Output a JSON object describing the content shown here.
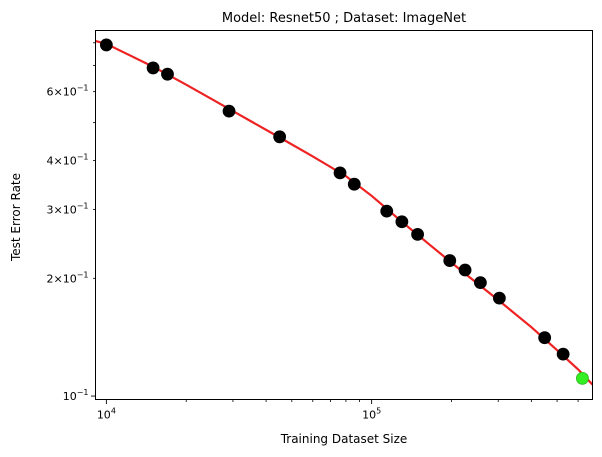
{
  "chart_data": {
    "type": "scatter",
    "title": "Model: Resnet50 ; Dataset: ImageNet",
    "xlabel": "Training Dataset Size",
    "ylabel": "Test Error Rate",
    "xscale": "log",
    "yscale": "log",
    "xlim": [
      9100,
      680000
    ],
    "ylim": [
      0.098,
      0.86
    ],
    "grid": false,
    "x_major_ticks": [
      {
        "value": 10000,
        "base": "10",
        "exp": "4"
      },
      {
        "value": 100000,
        "base": "10",
        "exp": "5"
      }
    ],
    "y_major_ticks": [
      {
        "value": 0.1,
        "base": "10",
        "exp": "−1",
        "coef": ""
      }
    ],
    "y_minor_labeled_ticks": [
      {
        "value": 0.2,
        "coef": "2",
        "base": "10",
        "exp": "−1"
      },
      {
        "value": 0.3,
        "coef": "3",
        "base": "10",
        "exp": "−1"
      },
      {
        "value": 0.4,
        "coef": "4",
        "base": "10",
        "exp": "−1"
      },
      {
        "value": 0.6,
        "coef": "6",
        "base": "10",
        "exp": "−1"
      }
    ],
    "series": [
      {
        "kind": "points",
        "color": "#000000",
        "points": [
          [
            10000,
            0.79
          ],
          [
            15000,
            0.69
          ],
          [
            17000,
            0.665
          ],
          [
            29000,
            0.535
          ],
          [
            45000,
            0.46
          ],
          [
            76000,
            0.372
          ],
          [
            86000,
            0.348
          ],
          [
            114000,
            0.297
          ],
          [
            130000,
            0.279
          ],
          [
            149000,
            0.259
          ],
          [
            197000,
            0.222
          ],
          [
            225000,
            0.21
          ],
          [
            257000,
            0.195
          ],
          [
            303000,
            0.178
          ],
          [
            449000,
            0.141
          ],
          [
            527000,
            0.128
          ]
        ]
      },
      {
        "kind": "points",
        "color": "#33ee22",
        "points": [
          [
            623000,
            0.111
          ]
        ]
      },
      {
        "kind": "fit-line",
        "color": "#ee2222",
        "points": [
          [
            9000,
            0.81
          ],
          [
            10000,
            0.795
          ],
          [
            15000,
            0.695
          ],
          [
            20000,
            0.625
          ],
          [
            30000,
            0.535
          ],
          [
            45000,
            0.458
          ],
          [
            60000,
            0.41
          ],
          [
            80000,
            0.365
          ],
          [
            100000,
            0.325
          ],
          [
            130000,
            0.279
          ],
          [
            170000,
            0.24
          ],
          [
            220000,
            0.208
          ],
          [
            300000,
            0.176
          ],
          [
            400000,
            0.15
          ],
          [
            500000,
            0.131
          ],
          [
            600000,
            0.117
          ],
          [
            680000,
            0.107
          ]
        ]
      }
    ]
  }
}
